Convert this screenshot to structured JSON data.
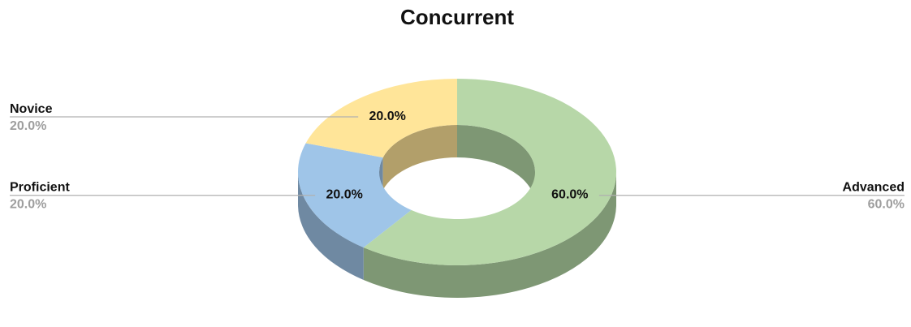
{
  "chart_data": {
    "type": "pie",
    "variant": "3d-donut",
    "title": "Concurrent",
    "categories": [
      "Advanced",
      "Proficient",
      "Novice"
    ],
    "values": [
      60.0,
      20.0,
      20.0
    ],
    "labels": [
      "60.0%",
      "20.0%",
      "20.0%"
    ],
    "colors": {
      "Advanced": "#b7d7a8",
      "Proficient": "#9fc5e8",
      "Novice": "#ffe599"
    },
    "side_colors": {
      "Advanced": "#7e9774",
      "Proficient": "#6f89a2",
      "Novice": "#b29f6a"
    },
    "legend": "callout-labels",
    "start_angle_deg": -90,
    "direction": "clockwise"
  }
}
